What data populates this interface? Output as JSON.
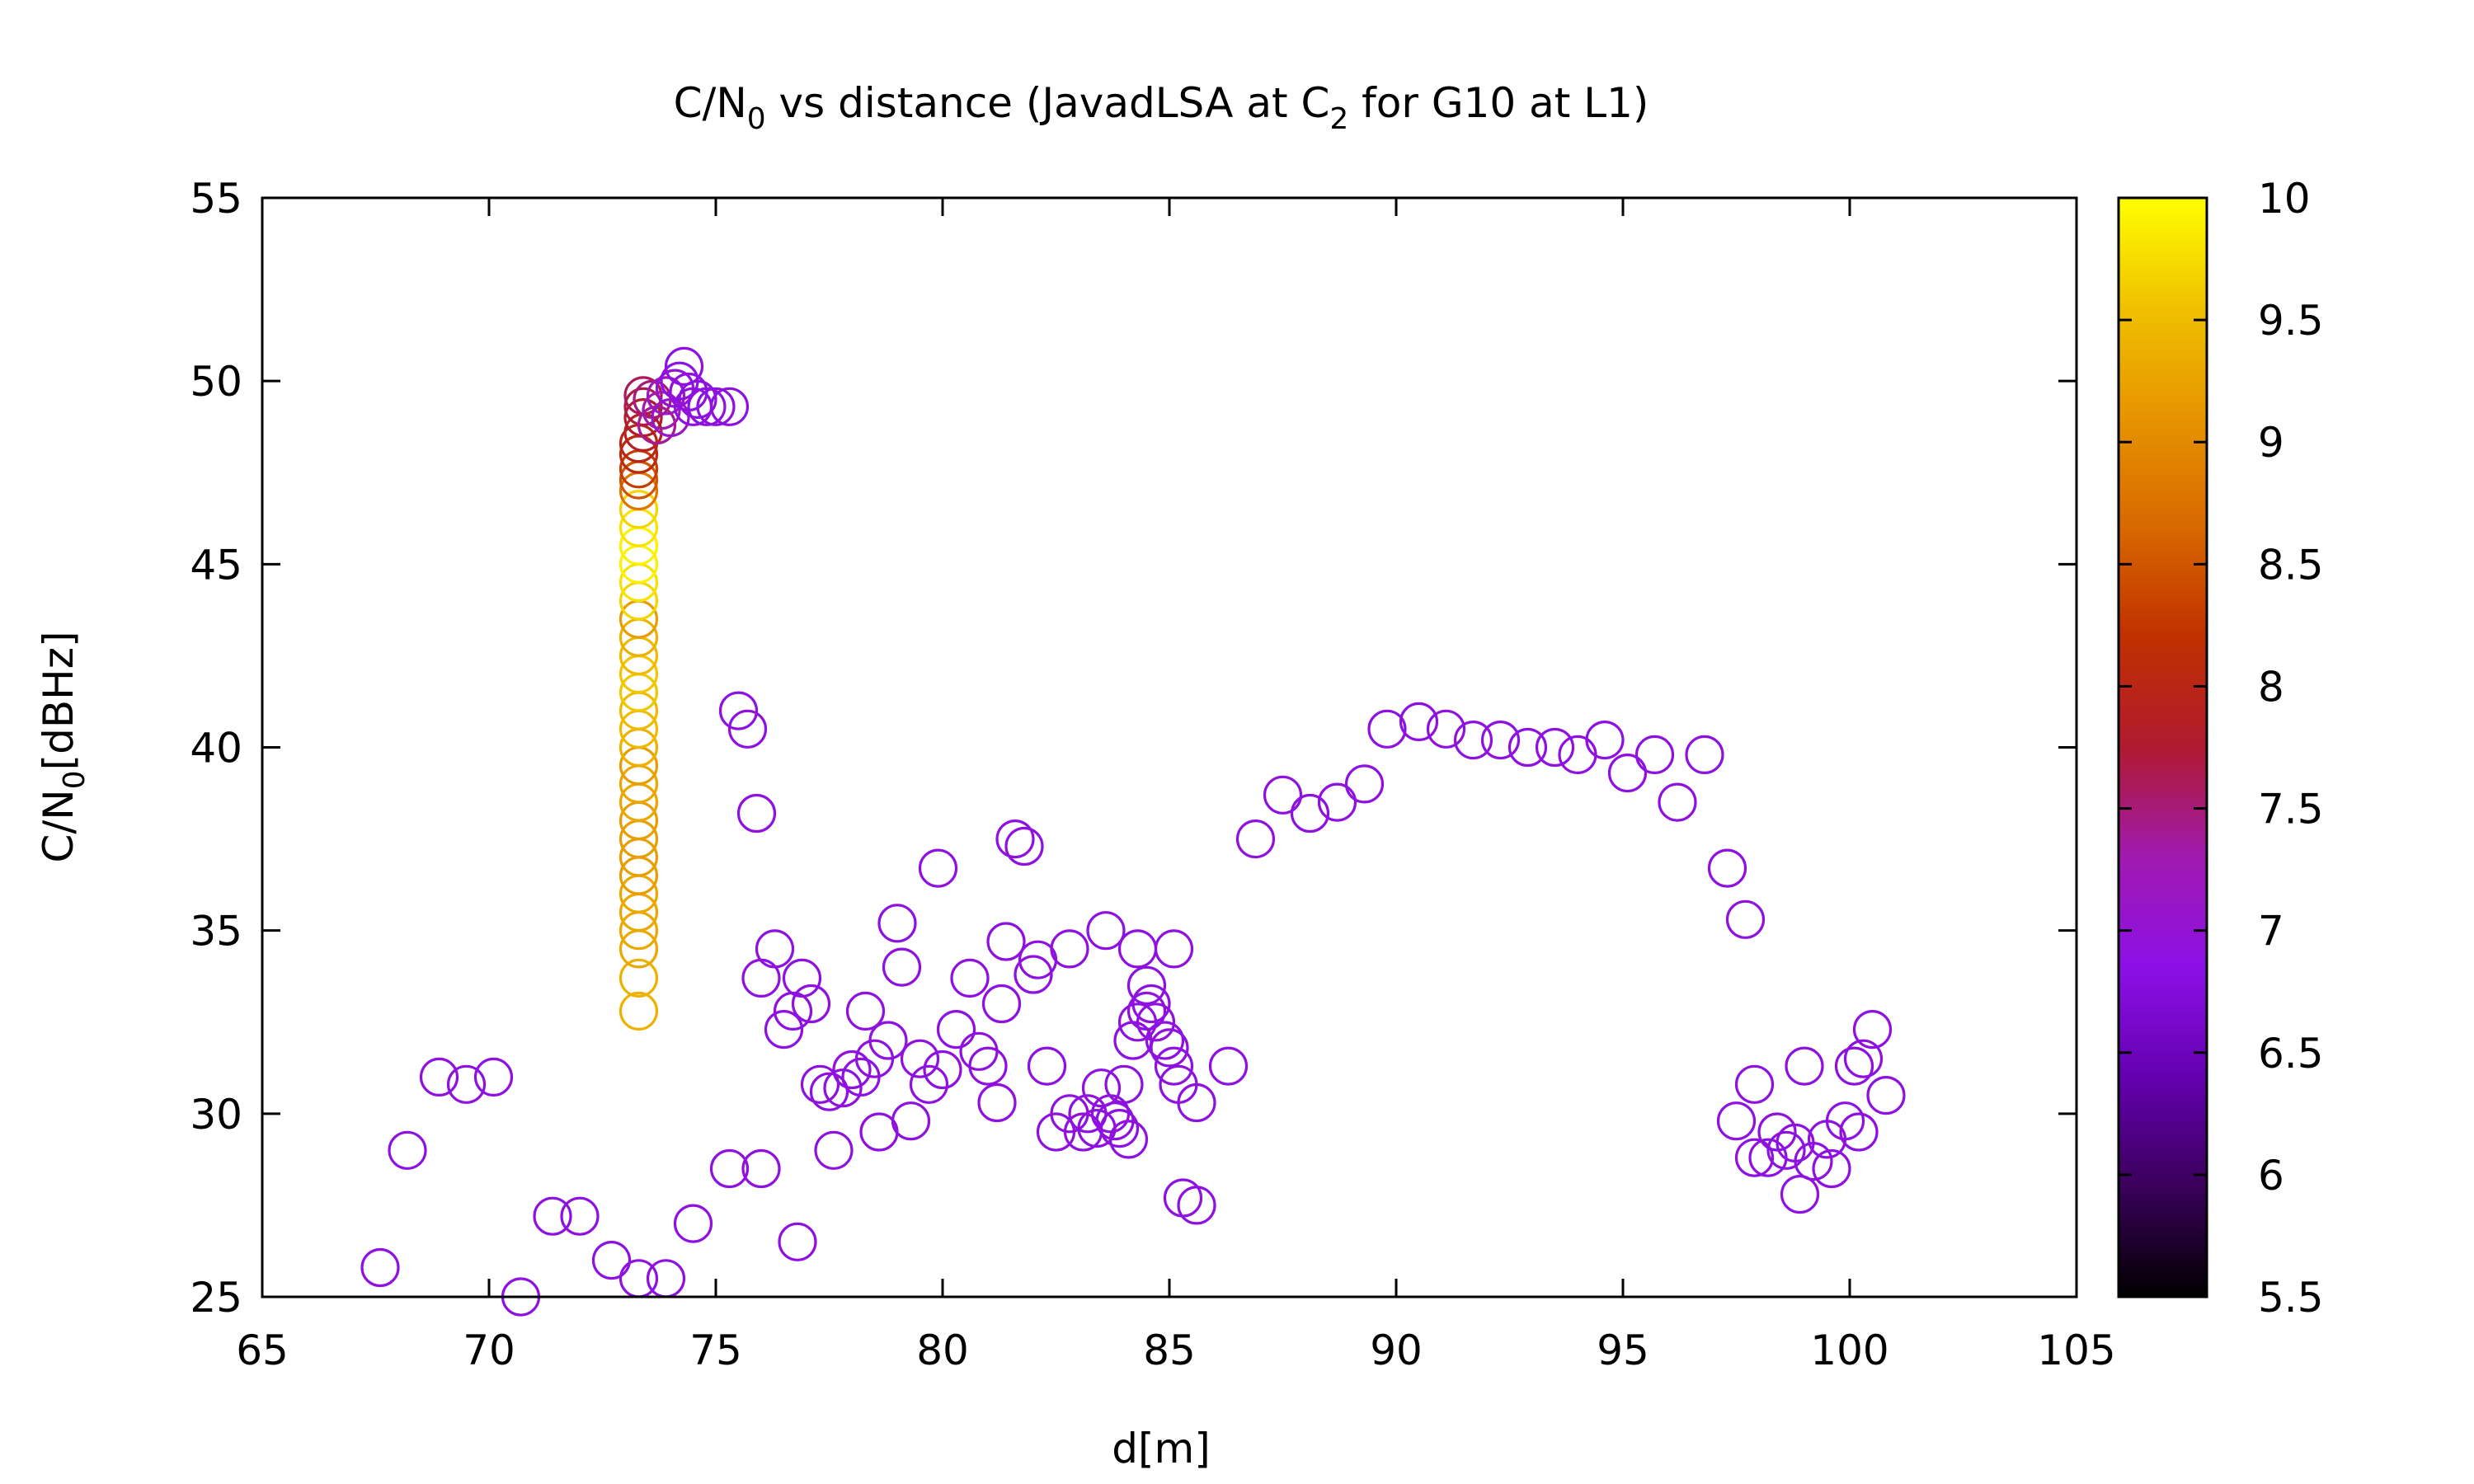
{
  "chart_data": {
    "type": "scatter",
    "title": {
      "prefix": "C/N",
      "sub1": "0",
      "middle": " vs distance (JavadLSA at C",
      "sub2": "2",
      "suffix": " for G10 at L1)"
    },
    "ylabel": {
      "prefix": "C/N",
      "sub": "0",
      "suffix": "[dBHz]"
    },
    "xlabel": "d[m]",
    "xlim": [
      65,
      105
    ],
    "ylim": [
      25,
      55
    ],
    "xticks": [
      "65",
      "70",
      "75",
      "80",
      "85",
      "90",
      "95",
      "100",
      "105"
    ],
    "yticks": [
      "25",
      "30",
      "35",
      "40",
      "45",
      "50",
      "55"
    ],
    "colorbar": {
      "range": [
        5.5,
        10
      ],
      "ticks": [
        "5.5",
        "6",
        "6.5",
        "7",
        "7.5",
        "8",
        "8.5",
        "9",
        "9.5",
        "10"
      ],
      "palette": [
        "#000000",
        "#3a005a",
        "#6400b0",
        "#8c10e6",
        "#a01ab0",
        "#b01a30",
        "#c03000",
        "#d86800",
        "#e69400",
        "#f0c000",
        "#ffff00"
      ]
    },
    "marker": "open-circle",
    "grid": false,
    "series": [
      {
        "points": [
          [
            67.6,
            25.8,
            6.9
          ],
          [
            68.2,
            29.0,
            6.9
          ],
          [
            68.9,
            31.0,
            6.9
          ],
          [
            69.5,
            30.8,
            6.9
          ],
          [
            70.1,
            31.0,
            6.9
          ],
          [
            70.7,
            25.0,
            6.9
          ],
          [
            71.4,
            27.2,
            6.9
          ],
          [
            72.0,
            27.2,
            6.9
          ],
          [
            72.7,
            26.0,
            6.9
          ],
          [
            73.3,
            25.5,
            6.9
          ],
          [
            73.9,
            25.5,
            6.9
          ],
          [
            74.5,
            27.0,
            6.9
          ],
          [
            75.3,
            28.5,
            6.9
          ],
          [
            76.0,
            28.5,
            6.9
          ],
          [
            76.8,
            26.5,
            6.9
          ],
          [
            75.5,
            41.0,
            6.9
          ],
          [
            75.7,
            40.5,
            6.9
          ],
          [
            75.9,
            38.2,
            6.9
          ],
          [
            76.0,
            33.7,
            6.9
          ],
          [
            76.3,
            34.5,
            6.9
          ],
          [
            76.5,
            32.3,
            6.9
          ],
          [
            76.7,
            32.8,
            6.9
          ],
          [
            76.9,
            33.7,
            6.9
          ],
          [
            77.1,
            33.0,
            6.9
          ],
          [
            77.3,
            30.8,
            6.9
          ],
          [
            77.5,
            30.6,
            6.9
          ],
          [
            77.6,
            29.0,
            6.9
          ],
          [
            77.8,
            30.7,
            6.9
          ],
          [
            78.0,
            31.2,
            6.9
          ],
          [
            78.2,
            31.0,
            6.9
          ],
          [
            78.3,
            32.8,
            6.9
          ],
          [
            78.5,
            31.5,
            6.9
          ],
          [
            78.6,
            29.5,
            6.9
          ],
          [
            78.8,
            32.0,
            6.9
          ],
          [
            79.0,
            35.2,
            6.9
          ],
          [
            79.1,
            34.0,
            6.9
          ],
          [
            79.3,
            29.8,
            6.9
          ],
          [
            79.5,
            31.5,
            6.9
          ],
          [
            79.7,
            30.8,
            6.9
          ],
          [
            79.9,
            36.7,
            6.9
          ],
          [
            80.0,
            31.2,
            6.9
          ],
          [
            80.3,
            32.3,
            6.9
          ],
          [
            80.6,
            33.7,
            6.9
          ],
          [
            80.8,
            31.7,
            6.9
          ],
          [
            81.0,
            31.3,
            6.9
          ],
          [
            81.2,
            30.3,
            6.9
          ],
          [
            81.3,
            33.0,
            6.9
          ],
          [
            81.4,
            34.7,
            6.9
          ],
          [
            81.6,
            37.5,
            6.9
          ],
          [
            81.8,
            37.3,
            6.9
          ],
          [
            82.1,
            34.2,
            6.9
          ],
          [
            82.0,
            33.8,
            6.9
          ],
          [
            82.3,
            31.3,
            6.9
          ],
          [
            82.5,
            29.5,
            6.9
          ],
          [
            82.8,
            34.5,
            6.9
          ],
          [
            82.8,
            30.0,
            6.9
          ],
          [
            83.1,
            29.5,
            6.9
          ],
          [
            83.2,
            30.0,
            6.9
          ],
          [
            83.4,
            29.6,
            6.9
          ],
          [
            83.5,
            30.7,
            6.9
          ],
          [
            83.6,
            35.0,
            6.9
          ],
          [
            83.7,
            30.0,
            6.9
          ],
          [
            83.8,
            29.8,
            6.9
          ],
          [
            83.9,
            29.6,
            6.9
          ],
          [
            84.0,
            30.8,
            6.9
          ],
          [
            84.1,
            29.3,
            6.9
          ],
          [
            84.2,
            32.0,
            6.9
          ],
          [
            84.3,
            34.5,
            6.9
          ],
          [
            84.3,
            32.5,
            6.9
          ],
          [
            84.5,
            33.5,
            6.9
          ],
          [
            84.5,
            32.8,
            6.9
          ],
          [
            84.6,
            33.0,
            6.9
          ],
          [
            84.7,
            32.5,
            6.9
          ],
          [
            84.9,
            32.0,
            6.9
          ],
          [
            85.0,
            31.8,
            6.9
          ],
          [
            85.1,
            34.5,
            6.9
          ],
          [
            85.1,
            31.3,
            6.9
          ],
          [
            85.2,
            30.8,
            6.9
          ],
          [
            85.3,
            27.7,
            6.9
          ],
          [
            85.6,
            27.5,
            6.9
          ],
          [
            85.6,
            30.3,
            6.9
          ],
          [
            86.3,
            31.3,
            6.9
          ],
          [
            86.9,
            37.5,
            6.9
          ],
          [
            87.5,
            38.7,
            6.9
          ],
          [
            88.1,
            38.2,
            6.9
          ],
          [
            88.7,
            38.5,
            6.9
          ],
          [
            89.3,
            39.0,
            6.9
          ],
          [
            89.8,
            40.5,
            6.9
          ],
          [
            90.5,
            40.7,
            6.9
          ],
          [
            91.1,
            40.5,
            6.9
          ],
          [
            91.7,
            40.2,
            6.9
          ],
          [
            92.3,
            40.2,
            6.9
          ],
          [
            92.9,
            40.0,
            6.9
          ],
          [
            93.5,
            40.0,
            6.9
          ],
          [
            94.0,
            39.8,
            6.9
          ],
          [
            94.6,
            40.2,
            6.9
          ],
          [
            95.1,
            39.3,
            6.9
          ],
          [
            95.7,
            39.8,
            6.9
          ],
          [
            96.2,
            38.5,
            6.9
          ],
          [
            96.8,
            39.8,
            6.9
          ],
          [
            97.3,
            36.7,
            6.9
          ],
          [
            97.7,
            35.3,
            6.9
          ],
          [
            97.5,
            29.8,
            6.9
          ],
          [
            97.9,
            30.8,
            6.9
          ],
          [
            97.9,
            28.8,
            6.9
          ],
          [
            98.2,
            28.8,
            6.9
          ],
          [
            98.4,
            29.5,
            6.9
          ],
          [
            98.6,
            29.0,
            6.9
          ],
          [
            98.8,
            29.2,
            6.9
          ],
          [
            98.9,
            27.8,
            6.9
          ],
          [
            99.0,
            31.3,
            6.9
          ],
          [
            99.2,
            28.7,
            6.9
          ],
          [
            99.5,
            29.3,
            6.9
          ],
          [
            99.6,
            28.5,
            6.9
          ],
          [
            99.9,
            29.8,
            6.9
          ],
          [
            100.1,
            31.3,
            6.9
          ],
          [
            100.2,
            29.5,
            6.9
          ],
          [
            100.3,
            31.5,
            6.9
          ],
          [
            100.5,
            32.3,
            6.9
          ],
          [
            100.8,
            30.5,
            6.9
          ],
          [
            73.3,
            32.8,
            9.4
          ],
          [
            73.3,
            33.7,
            9.4
          ],
          [
            73.3,
            34.5,
            9.3
          ],
          [
            73.3,
            35.0,
            9.3
          ],
          [
            73.3,
            35.5,
            9.3
          ],
          [
            73.3,
            36.0,
            9.3
          ],
          [
            73.3,
            36.5,
            9.2
          ],
          [
            73.3,
            37.0,
            9.2
          ],
          [
            73.3,
            37.5,
            9.2
          ],
          [
            73.3,
            38.0,
            9.2
          ],
          [
            73.3,
            38.5,
            9.3
          ],
          [
            73.3,
            39.0,
            9.3
          ],
          [
            73.3,
            39.5,
            9.2
          ],
          [
            73.3,
            40.0,
            9.4
          ],
          [
            73.3,
            40.5,
            9.5
          ],
          [
            73.3,
            41.0,
            9.5
          ],
          [
            73.3,
            41.5,
            9.6
          ],
          [
            73.3,
            42.0,
            9.6
          ],
          [
            73.3,
            42.5,
            9.5
          ],
          [
            73.3,
            43.0,
            9.4
          ],
          [
            73.3,
            43.5,
            9.2
          ],
          [
            73.3,
            44.0,
            9.7
          ],
          [
            73.3,
            44.5,
            9.8
          ],
          [
            73.3,
            45.0,
            9.9
          ],
          [
            73.3,
            45.5,
            9.9
          ],
          [
            73.3,
            46.0,
            9.8
          ],
          [
            73.3,
            46.5,
            9.7
          ],
          [
            73.3,
            47.0,
            8.8
          ],
          [
            73.3,
            47.3,
            8.5
          ],
          [
            73.3,
            47.6,
            8.3
          ],
          [
            73.3,
            48.0,
            8.1
          ],
          [
            73.3,
            48.3,
            8.0
          ],
          [
            73.4,
            48.6,
            7.9
          ],
          [
            73.4,
            49.0,
            7.8
          ],
          [
            73.4,
            49.3,
            7.7
          ],
          [
            73.4,
            49.6,
            7.6
          ],
          [
            73.6,
            49.5,
            7.5
          ],
          [
            73.7,
            48.8,
            7.4
          ],
          [
            73.8,
            49.2,
            7.3
          ],
          [
            73.9,
            49.6,
            7.2
          ],
          [
            74.0,
            49.0,
            7.1
          ],
          [
            74.1,
            49.8,
            7.0
          ],
          [
            74.2,
            50.0,
            6.9
          ],
          [
            74.3,
            50.4,
            6.9
          ],
          [
            74.4,
            49.7,
            6.9
          ],
          [
            74.5,
            49.3,
            6.9
          ],
          [
            74.6,
            49.5,
            6.9
          ],
          [
            74.8,
            49.3,
            6.9
          ],
          [
            75.0,
            49.3,
            6.9
          ],
          [
            75.3,
            49.3,
            6.9
          ]
        ]
      }
    ]
  }
}
